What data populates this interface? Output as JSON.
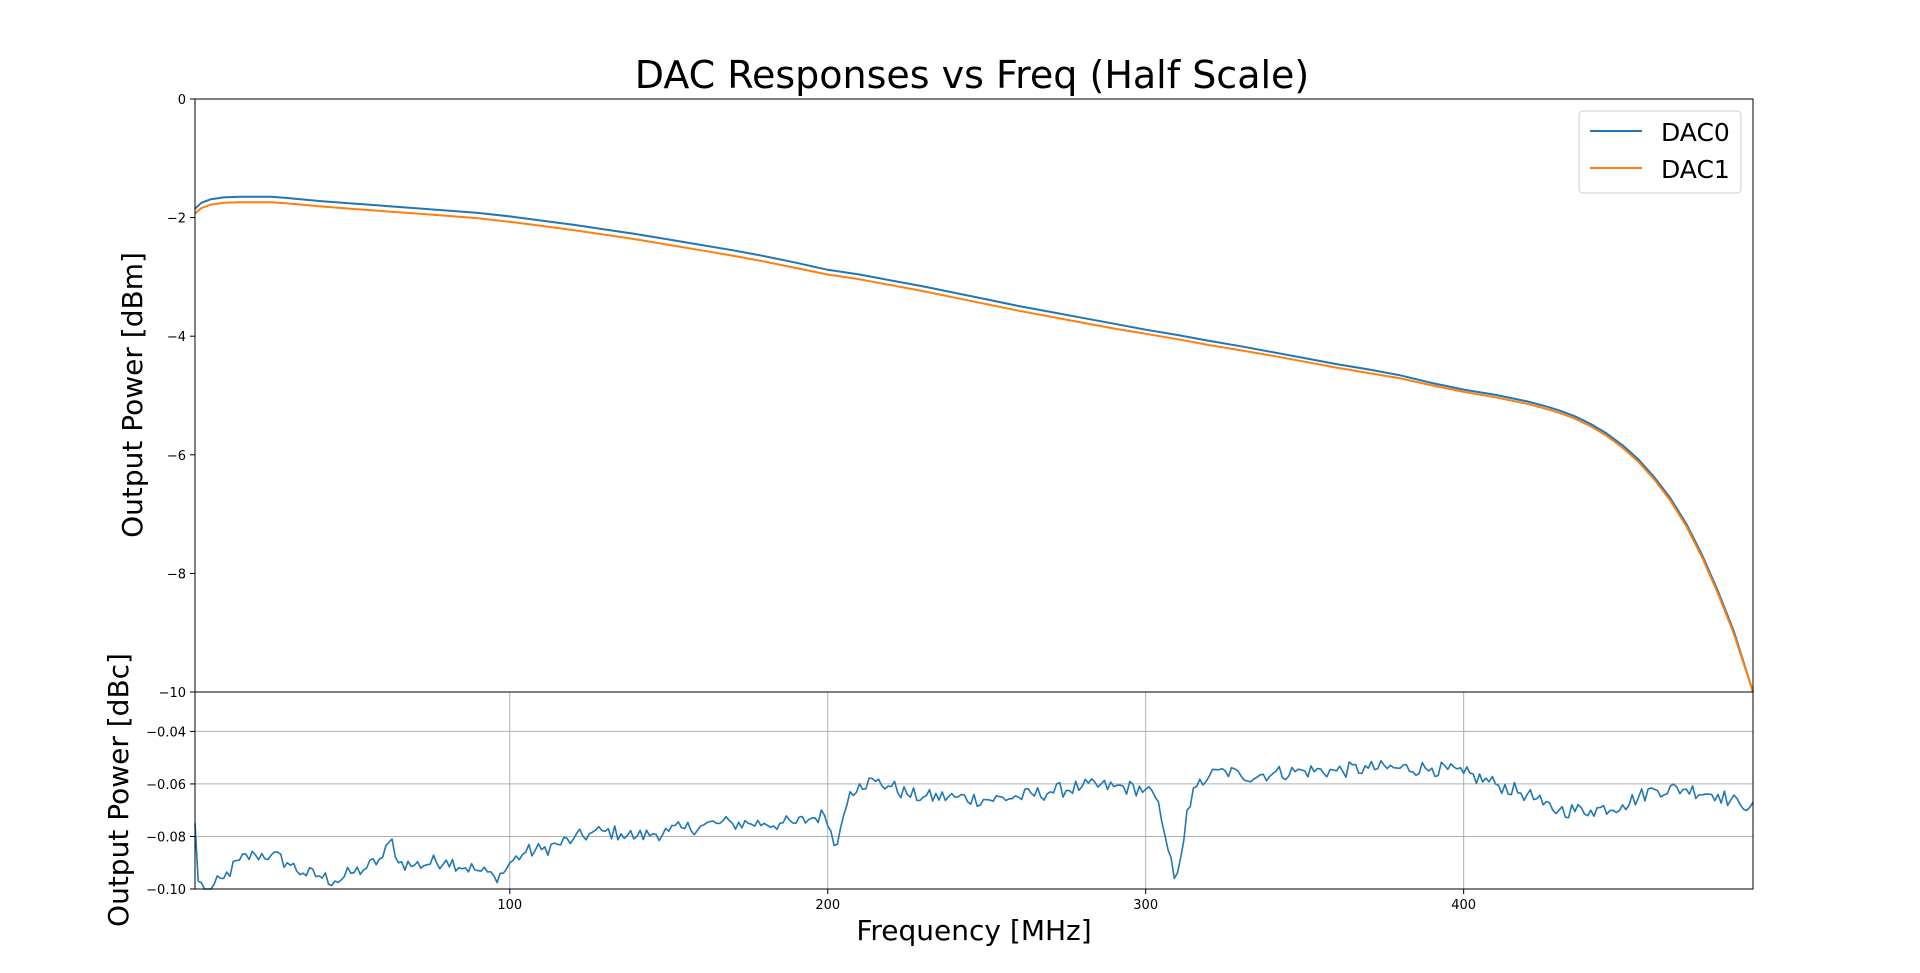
{
  "chart_data": [
    {
      "type": "line",
      "title": "DAC Responses vs Freq (Half Scale)",
      "xlabel": "",
      "ylabel": "Output Power [dBm]",
      "xlim": [
        1,
        491
      ],
      "ylim": [
        -10,
        0
      ],
      "yticks": [
        0,
        -2,
        -4,
        -6,
        -8,
        -10
      ],
      "ytick_labels": [
        "0",
        "−2",
        "−4",
        "−6",
        "−8",
        "−10"
      ],
      "grid": false,
      "legend_position": "top-right",
      "series": [
        {
          "name": "DAC0",
          "color": "#1f77b4",
          "x": [
            1,
            3,
            6,
            10,
            15,
            20,
            25,
            30,
            40,
            50,
            60,
            70,
            80,
            90,
            100,
            110,
            120,
            130,
            140,
            150,
            160,
            170,
            180,
            190,
            200,
            210,
            220,
            230,
            240,
            250,
            260,
            270,
            280,
            290,
            300,
            310,
            320,
            330,
            340,
            350,
            360,
            370,
            380,
            390,
            400,
            410,
            420,
            425,
            430,
            435,
            440,
            445,
            450,
            455,
            460,
            465,
            470,
            475,
            480,
            485,
            491
          ],
          "values": [
            -1.85,
            -1.75,
            -1.69,
            -1.66,
            -1.65,
            -1.65,
            -1.65,
            -1.67,
            -1.72,
            -1.76,
            -1.8,
            -1.84,
            -1.88,
            -1.92,
            -1.98,
            -2.05,
            -2.12,
            -2.2,
            -2.28,
            -2.37,
            -2.46,
            -2.55,
            -2.65,
            -2.76,
            -2.88,
            -2.96,
            -3.06,
            -3.16,
            -3.27,
            -3.38,
            -3.49,
            -3.59,
            -3.69,
            -3.79,
            -3.89,
            -3.98,
            -4.08,
            -4.17,
            -4.27,
            -4.37,
            -4.47,
            -4.56,
            -4.66,
            -4.79,
            -4.9,
            -4.99,
            -5.1,
            -5.17,
            -5.25,
            -5.35,
            -5.48,
            -5.64,
            -5.84,
            -6.08,
            -6.38,
            -6.73,
            -7.16,
            -7.69,
            -8.3,
            -8.98,
            -10.0
          ]
        },
        {
          "name": "DAC1",
          "color": "#ff7f0e",
          "x": [
            1,
            3,
            6,
            10,
            15,
            20,
            25,
            30,
            40,
            50,
            60,
            70,
            80,
            90,
            100,
            110,
            120,
            130,
            140,
            150,
            160,
            170,
            180,
            190,
            200,
            210,
            220,
            230,
            240,
            250,
            260,
            270,
            280,
            290,
            300,
            310,
            320,
            330,
            340,
            350,
            360,
            370,
            380,
            390,
            400,
            410,
            420,
            425,
            430,
            435,
            440,
            445,
            450,
            455,
            460,
            465,
            470,
            475,
            480,
            485,
            491
          ],
          "values": [
            -1.93,
            -1.84,
            -1.78,
            -1.75,
            -1.74,
            -1.74,
            -1.74,
            -1.76,
            -1.81,
            -1.85,
            -1.89,
            -1.93,
            -1.97,
            -2.01,
            -2.07,
            -2.14,
            -2.21,
            -2.29,
            -2.37,
            -2.46,
            -2.55,
            -2.64,
            -2.74,
            -2.85,
            -2.96,
            -3.04,
            -3.14,
            -3.24,
            -3.35,
            -3.46,
            -3.57,
            -3.67,
            -3.77,
            -3.87,
            -3.96,
            -4.05,
            -4.15,
            -4.24,
            -4.33,
            -4.43,
            -4.53,
            -4.62,
            -4.71,
            -4.83,
            -4.94,
            -5.03,
            -5.14,
            -5.21,
            -5.29,
            -5.39,
            -5.52,
            -5.68,
            -5.88,
            -6.12,
            -6.42,
            -6.77,
            -7.2,
            -7.73,
            -8.34,
            -9.02,
            -10.0
          ]
        }
      ]
    },
    {
      "type": "line",
      "title": "",
      "xlabel": "Frequency [MHz]",
      "ylabel": "Output Power [dBc]",
      "xlim": [
        1,
        491
      ],
      "ylim": [
        -0.1,
        -0.025
      ],
      "xticks": [
        100,
        200,
        300,
        400
      ],
      "xtick_labels": [
        "100",
        "200",
        "300",
        "400"
      ],
      "yticks": [
        -0.04,
        -0.06,
        -0.08,
        -0.1
      ],
      "ytick_labels": [
        "−0.04",
        "−0.06",
        "−0.08",
        "−0.10"
      ],
      "grid": true,
      "series": [
        {
          "color": "#1f77b4",
          "x": [
            1,
            2,
            4,
            6,
            10,
            15,
            20,
            25,
            30,
            35,
            40,
            45,
            50,
            55,
            60,
            63,
            65,
            70,
            80,
            90,
            95,
            98,
            100,
            105,
            110,
            115,
            120,
            125,
            130,
            135,
            140,
            145,
            150,
            155,
            160,
            165,
            170,
            175,
            180,
            185,
            190,
            195,
            199,
            201,
            203,
            205,
            207,
            210,
            215,
            220,
            225,
            230,
            240,
            250,
            260,
            270,
            280,
            290,
            300,
            303,
            305,
            307,
            309,
            311,
            313,
            316,
            320,
            325,
            330,
            340,
            350,
            360,
            370,
            380,
            390,
            400,
            410,
            420,
            425,
            430,
            440,
            450,
            460,
            470,
            480,
            487,
            491
          ],
          "values": [
            -0.075,
            -0.097,
            -0.1,
            -0.1,
            -0.096,
            -0.089,
            -0.087,
            -0.087,
            -0.09,
            -0.094,
            -0.095,
            -0.097,
            -0.094,
            -0.092,
            -0.088,
            -0.081,
            -0.09,
            -0.091,
            -0.089,
            -0.093,
            -0.095,
            -0.094,
            -0.09,
            -0.086,
            -0.085,
            -0.083,
            -0.081,
            -0.079,
            -0.078,
            -0.079,
            -0.08,
            -0.079,
            -0.078,
            -0.077,
            -0.076,
            -0.075,
            -0.075,
            -0.075,
            -0.075,
            -0.075,
            -0.075,
            -0.073,
            -0.072,
            -0.078,
            -0.083,
            -0.072,
            -0.063,
            -0.06,
            -0.059,
            -0.061,
            -0.064,
            -0.065,
            -0.065,
            -0.066,
            -0.065,
            -0.063,
            -0.061,
            -0.061,
            -0.062,
            -0.065,
            -0.074,
            -0.085,
            -0.096,
            -0.088,
            -0.07,
            -0.061,
            -0.057,
            -0.055,
            -0.057,
            -0.056,
            -0.055,
            -0.055,
            -0.054,
            -0.054,
            -0.054,
            -0.056,
            -0.06,
            -0.064,
            -0.068,
            -0.07,
            -0.07,
            -0.068,
            -0.062,
            -0.062,
            -0.064,
            -0.068,
            -0.067
          ]
        }
      ]
    }
  ]
}
